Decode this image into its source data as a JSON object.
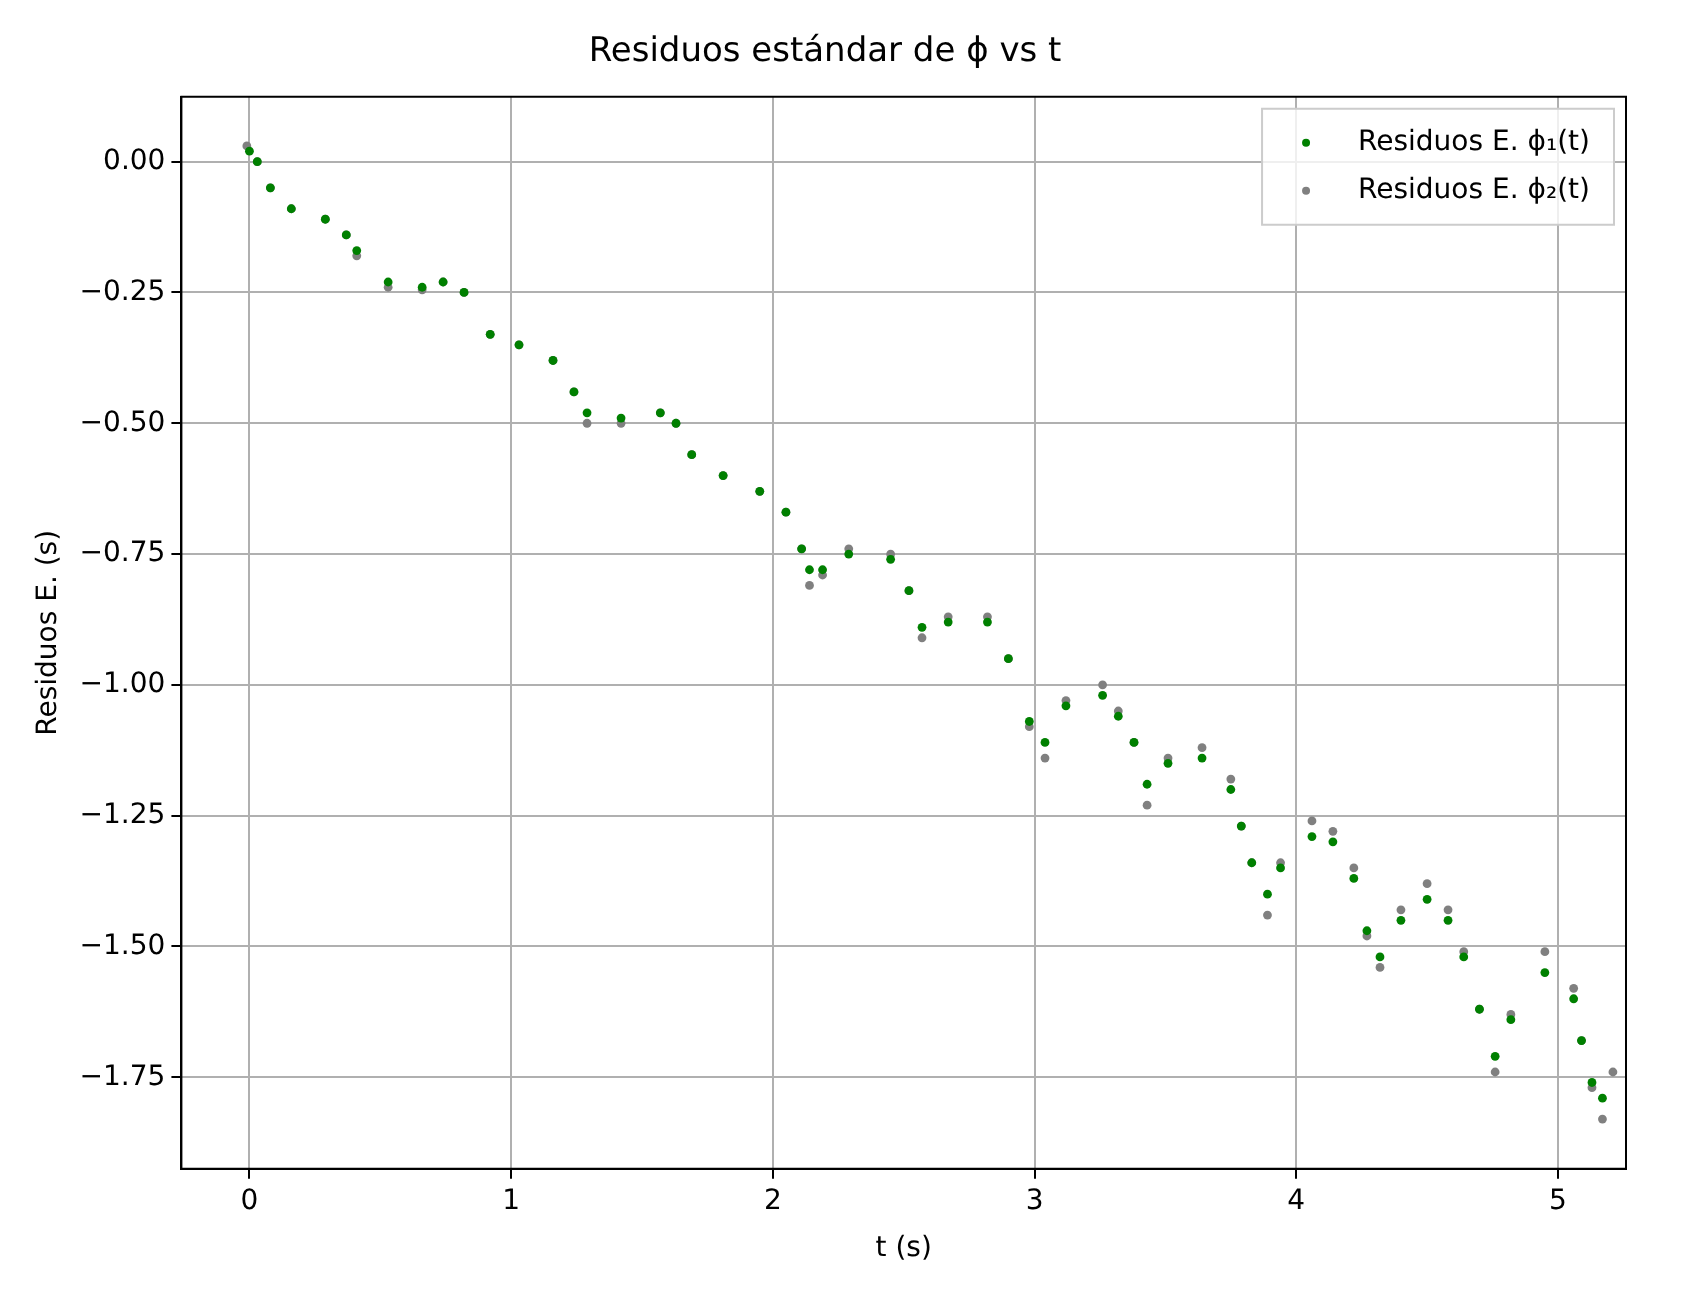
{
  "chart_data": {
    "type": "scatter",
    "title": "Residuos estándar de ϕ vs t",
    "xlabel": "t (s)",
    "ylabel": "Residuos E. (s)",
    "xlim": [
      -0.26,
      5.26
    ],
    "ylim": [
      -1.925,
      0.124
    ],
    "xticks": [
      0,
      1,
      2,
      3,
      4,
      5
    ],
    "yticks": [
      {
        "value": 0,
        "label": "0.00"
      },
      {
        "value": -0.25,
        "label": "−0.25"
      },
      {
        "value": -0.5,
        "label": "−0.50"
      },
      {
        "value": -0.75,
        "label": "−0.75"
      },
      {
        "value": -1,
        "label": "−1.00"
      },
      {
        "value": -1.25,
        "label": "−1.25"
      },
      {
        "value": -1.5,
        "label": "−1.50"
      },
      {
        "value": -1.75,
        "label": "−1.75"
      }
    ],
    "grid": true,
    "legend": "top right",
    "marker": "circle",
    "series": [
      {
        "name": "Residuos E. ϕ₁(t)",
        "color": "#008000",
        "x": [
          0,
          0.03,
          0.08,
          0.16,
          0.29,
          0.37,
          0.41,
          0.53,
          0.66,
          0.74,
          0.82,
          0.92,
          1.03,
          1.16,
          1.24,
          1.29,
          1.42,
          1.57,
          1.63,
          1.69,
          1.81,
          1.95,
          2.05,
          2.11,
          2.14,
          2.19,
          2.29,
          2.45,
          2.52,
          2.57,
          2.67,
          2.82,
          2.9,
          2.98,
          3.04,
          3.12,
          3.26,
          3.32,
          3.38,
          3.43,
          3.51,
          3.64,
          3.75,
          3.79,
          3.83,
          3.89,
          3.94,
          4.06,
          4.14,
          4.22,
          4.27,
          4.32,
          4.4,
          4.5,
          4.58,
          4.64,
          4.7,
          4.76,
          4.82,
          4.95,
          5.06,
          5.09,
          5.13,
          5.17
        ],
        "values": [
          0.02,
          0,
          -0.05,
          -0.09,
          -0.11,
          -0.14,
          -0.17,
          -0.23,
          -0.24,
          -0.23,
          -0.25,
          -0.33,
          -0.35,
          -0.38,
          -0.44,
          -0.48,
          -0.49,
          -0.48,
          -0.5,
          -0.56,
          -0.6,
          -0.63,
          -0.67,
          -0.74,
          -0.78,
          -0.78,
          -0.75,
          -0.76,
          -0.82,
          -0.89,
          -0.88,
          -0.88,
          -0.95,
          -1.07,
          -1.11,
          -1.04,
          -1.02,
          -1.06,
          -1.11,
          -1.19,
          -1.15,
          -1.14,
          -1.2,
          -1.27,
          -1.34,
          -1.4,
          -1.35,
          -1.29,
          -1.3,
          -1.37,
          -1.47,
          -1.52,
          -1.45,
          -1.41,
          -1.45,
          -1.52,
          -1.62,
          -1.71,
          -1.64,
          -1.55,
          -1.6,
          -1.68,
          -1.76,
          -1.79
        ]
      },
      {
        "name": "Residuos E. ϕ₂(t)",
        "color": "#808080",
        "x": [
          -0.01,
          0.03,
          0.08,
          0.16,
          0.29,
          0.37,
          0.41,
          0.53,
          0.66,
          0.74,
          0.82,
          0.92,
          1.03,
          1.16,
          1.24,
          1.29,
          1.42,
          1.57,
          1.63,
          1.69,
          1.81,
          1.95,
          2.05,
          2.11,
          2.14,
          2.19,
          2.29,
          2.45,
          2.52,
          2.57,
          2.67,
          2.82,
          2.9,
          2.98,
          3.04,
          3.12,
          3.26,
          3.32,
          3.38,
          3.43,
          3.51,
          3.64,
          3.75,
          3.79,
          3.83,
          3.89,
          3.94,
          4.06,
          4.14,
          4.22,
          4.27,
          4.32,
          4.4,
          4.5,
          4.58,
          4.64,
          4.7,
          4.76,
          4.82,
          4.95,
          5.06,
          5.09,
          5.13,
          5.17,
          5.21
        ],
        "values": [
          0.03,
          0,
          -0.05,
          -0.09,
          -0.11,
          -0.14,
          -0.18,
          -0.24,
          -0.245,
          -0.23,
          -0.25,
          -0.33,
          -0.35,
          -0.38,
          -0.44,
          -0.5,
          -0.5,
          -0.48,
          -0.5,
          -0.56,
          -0.6,
          -0.63,
          -0.67,
          -0.74,
          -0.81,
          -0.79,
          -0.74,
          -0.75,
          -0.82,
          -0.91,
          -0.87,
          -0.87,
          -0.95,
          -1.08,
          -1.14,
          -1.03,
          -1,
          -1.05,
          -1.11,
          -1.23,
          -1.14,
          -1.12,
          -1.18,
          -1.27,
          -1.34,
          -1.44,
          -1.34,
          -1.26,
          -1.28,
          -1.35,
          -1.48,
          -1.54,
          -1.43,
          -1.38,
          -1.43,
          -1.51,
          -1.62,
          -1.74,
          -1.63,
          -1.51,
          -1.58,
          -1.68,
          -1.77,
          -1.83,
          -1.74
        ]
      }
    ]
  }
}
